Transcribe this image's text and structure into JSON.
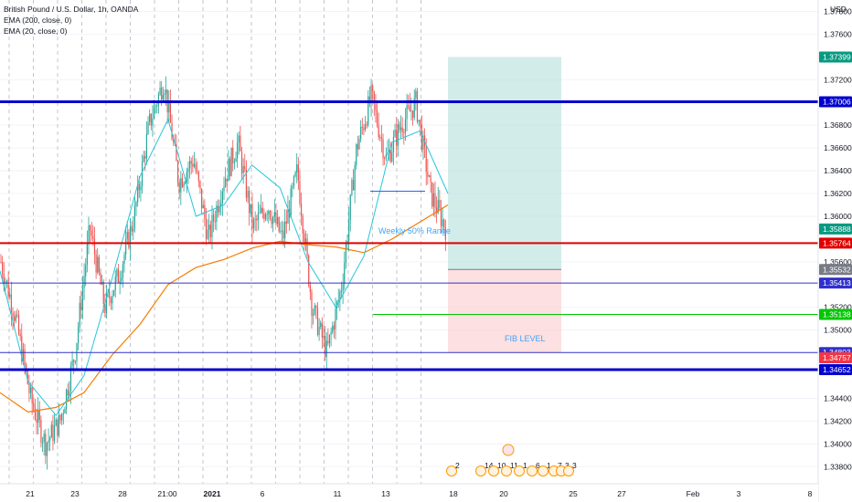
{
  "legend": {
    "symbol": "British Pound / U.S. Dollar, 1h, OANDA",
    "ema200": "EMA (200, close, 0)",
    "ema20": "EMA (20, close, 0)"
  },
  "currency": "USD",
  "chart_data": {
    "type": "candlestick",
    "symbol": "GBP/USD",
    "timeframe": "1h",
    "ylim": [
      1.3365,
      1.379
    ],
    "y_ticks": [
      1.378,
      1.376,
      1.372,
      1.37,
      1.368,
      1.366,
      1.364,
      1.362,
      1.36,
      1.356,
      1.352,
      1.35,
      1.344,
      1.342,
      1.34,
      1.338
    ],
    "y_tick_labels": [
      "1.37800",
      "1.37600",
      "1.37200",
      "1.37000",
      "1.36800",
      "1.36600",
      "1.36400",
      "1.36200",
      "1.36000",
      "1.35600",
      "1.35200",
      "1.35000",
      "1.34400",
      "1.34200",
      "1.34000",
      "1.33800"
    ],
    "x_tick_labels": [
      "21",
      "23",
      "28",
      "21:00",
      "2021",
      "6",
      "11",
      "13",
      "18",
      "20",
      "25",
      "27",
      "Feb",
      "3",
      "8"
    ],
    "price_tags": [
      {
        "value": 1.37399,
        "label": "1.37399",
        "color": "#089981"
      },
      {
        "value": 1.37006,
        "label": "1.37006",
        "color": "#0000cc"
      },
      {
        "value": 1.35888,
        "label": "1.35888",
        "color": "#089981"
      },
      {
        "value": 1.35764,
        "label": "1.35764",
        "color": "#e00000"
      },
      {
        "value": 1.35532,
        "label": "1.35532",
        "color": "#787b86"
      },
      {
        "value": 1.35413,
        "label": "1.35413",
        "color": "#3030cc"
      },
      {
        "value": 1.35138,
        "label": "1.35138",
        "color": "#00c800"
      },
      {
        "value": 1.34803,
        "label": "1.34803",
        "color": "#3030cc"
      },
      {
        "value": 1.34757,
        "label": "1.34757",
        "color": "#f23645"
      },
      {
        "value": 1.34652,
        "label": "1.34652",
        "color": "#0000cc"
      }
    ],
    "levels": [
      {
        "value": 1.37006,
        "color": "#0000cc",
        "weight": "thick"
      },
      {
        "value": 1.35764,
        "color": "#e00000",
        "weight": "medium"
      },
      {
        "value": 1.35413,
        "color": "#3030cc",
        "weight": "thin"
      },
      {
        "value": 1.34803,
        "color": "#3030cc",
        "weight": "thin"
      },
      {
        "value": 1.34652,
        "color": "#0000cc",
        "weight": "thick"
      }
    ],
    "annotations": {
      "weekly_range": "Weekly 50% Range",
      "fib_level": "FIB LEVEL"
    },
    "position": {
      "entry": 1.35532,
      "target": 1.37399,
      "stop": 1.34803
    },
    "ema200_path": [
      1.3445,
      1.3428,
      1.3432,
      1.3445,
      1.3478,
      1.3505,
      1.354,
      1.3555,
      1.3562,
      1.3572,
      1.3578,
      1.3575,
      1.3573,
      1.3568,
      1.358,
      1.3595,
      1.361
    ],
    "ema20_path": [
      1.3552,
      1.3455,
      1.3425,
      1.346,
      1.3545,
      1.3635,
      1.3685,
      1.36,
      1.361,
      1.3645,
      1.3625,
      1.356,
      1.352,
      1.3565,
      1.3665,
      1.3675,
      1.362
    ],
    "price_path": [
      1.356,
      1.351,
      1.344,
      1.34,
      1.342,
      1.348,
      1.359,
      1.352,
      1.355,
      1.36,
      1.368,
      1.372,
      1.363,
      1.365,
      1.358,
      1.363,
      1.3665,
      1.359,
      1.361,
      1.358,
      1.364,
      1.352,
      1.348,
      1.354,
      1.366,
      1.3705,
      1.365,
      1.368,
      1.37,
      1.362,
      1.359
    ]
  },
  "events": {
    "row1": [
      "2",
      "14",
      "10",
      "11",
      "1",
      "6",
      "1",
      "7",
      "3",
      "3"
    ]
  }
}
